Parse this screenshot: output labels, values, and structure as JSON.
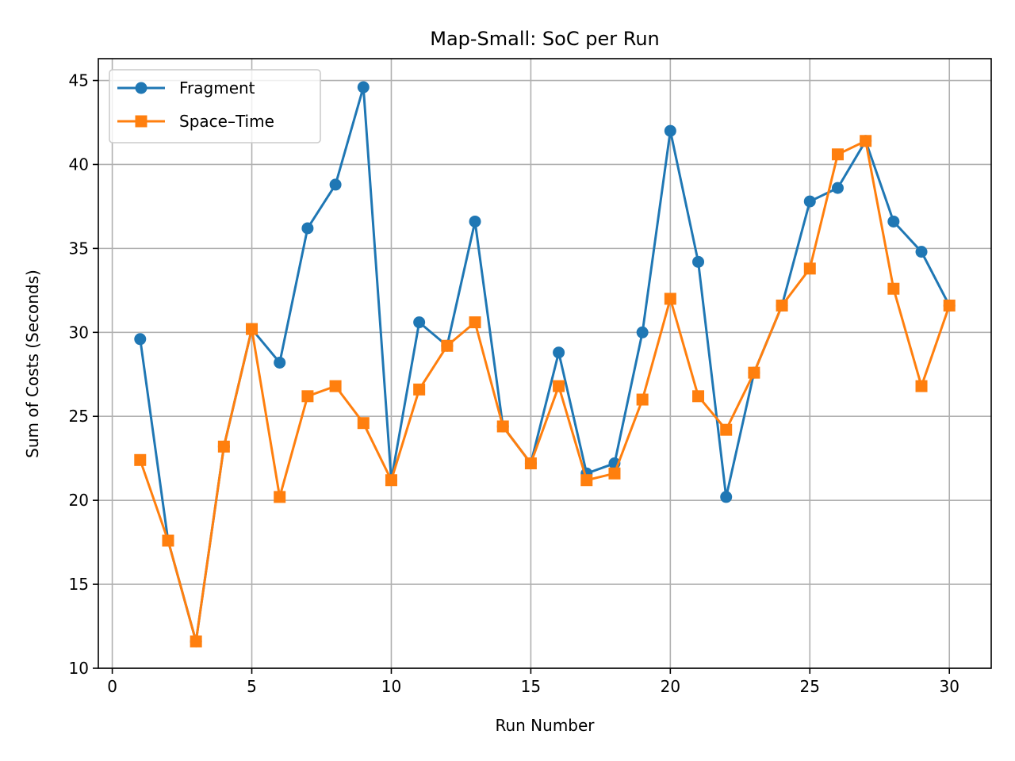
{
  "chart_data": {
    "type": "line",
    "title": "Map-Small: SoC per Run",
    "xlabel": "Run Number",
    "ylabel": "Sum of Costs (Seconds)",
    "xlim": [
      -0.5,
      31.5
    ],
    "ylim": [
      10,
      46.3
    ],
    "xticks": [
      0,
      5,
      10,
      15,
      20,
      25,
      30
    ],
    "yticks": [
      10,
      15,
      20,
      25,
      30,
      35,
      40,
      45
    ],
    "grid": true,
    "legend_position": "top-left",
    "x": [
      1,
      2,
      3,
      4,
      5,
      6,
      7,
      8,
      9,
      10,
      11,
      12,
      13,
      14,
      15,
      16,
      17,
      18,
      19,
      20,
      21,
      22,
      23,
      24,
      25,
      26,
      27,
      28,
      29,
      30
    ],
    "series": [
      {
        "name": "Fragment",
        "color": "#1f77b4",
        "marker": "circle",
        "values": [
          29.6,
          17.6,
          11.6,
          23.2,
          30.2,
          28.2,
          36.2,
          38.8,
          44.6,
          21.2,
          30.6,
          29.2,
          36.6,
          24.4,
          22.2,
          28.8,
          21.6,
          22.2,
          30.0,
          42.0,
          34.2,
          20.2,
          27.6,
          31.6,
          37.8,
          38.6,
          41.4,
          36.6,
          34.8,
          31.6
        ]
      },
      {
        "name": "Space–Time",
        "color": "#ff7f0e",
        "marker": "square",
        "values": [
          22.4,
          17.6,
          11.6,
          23.2,
          30.2,
          20.2,
          26.2,
          26.8,
          24.6,
          21.2,
          26.6,
          29.2,
          30.6,
          24.4,
          22.2,
          26.8,
          21.2,
          21.6,
          26.0,
          32.0,
          26.2,
          24.2,
          27.6,
          31.6,
          33.8,
          40.6,
          41.4,
          32.6,
          26.8,
          31.6
        ]
      }
    ]
  }
}
